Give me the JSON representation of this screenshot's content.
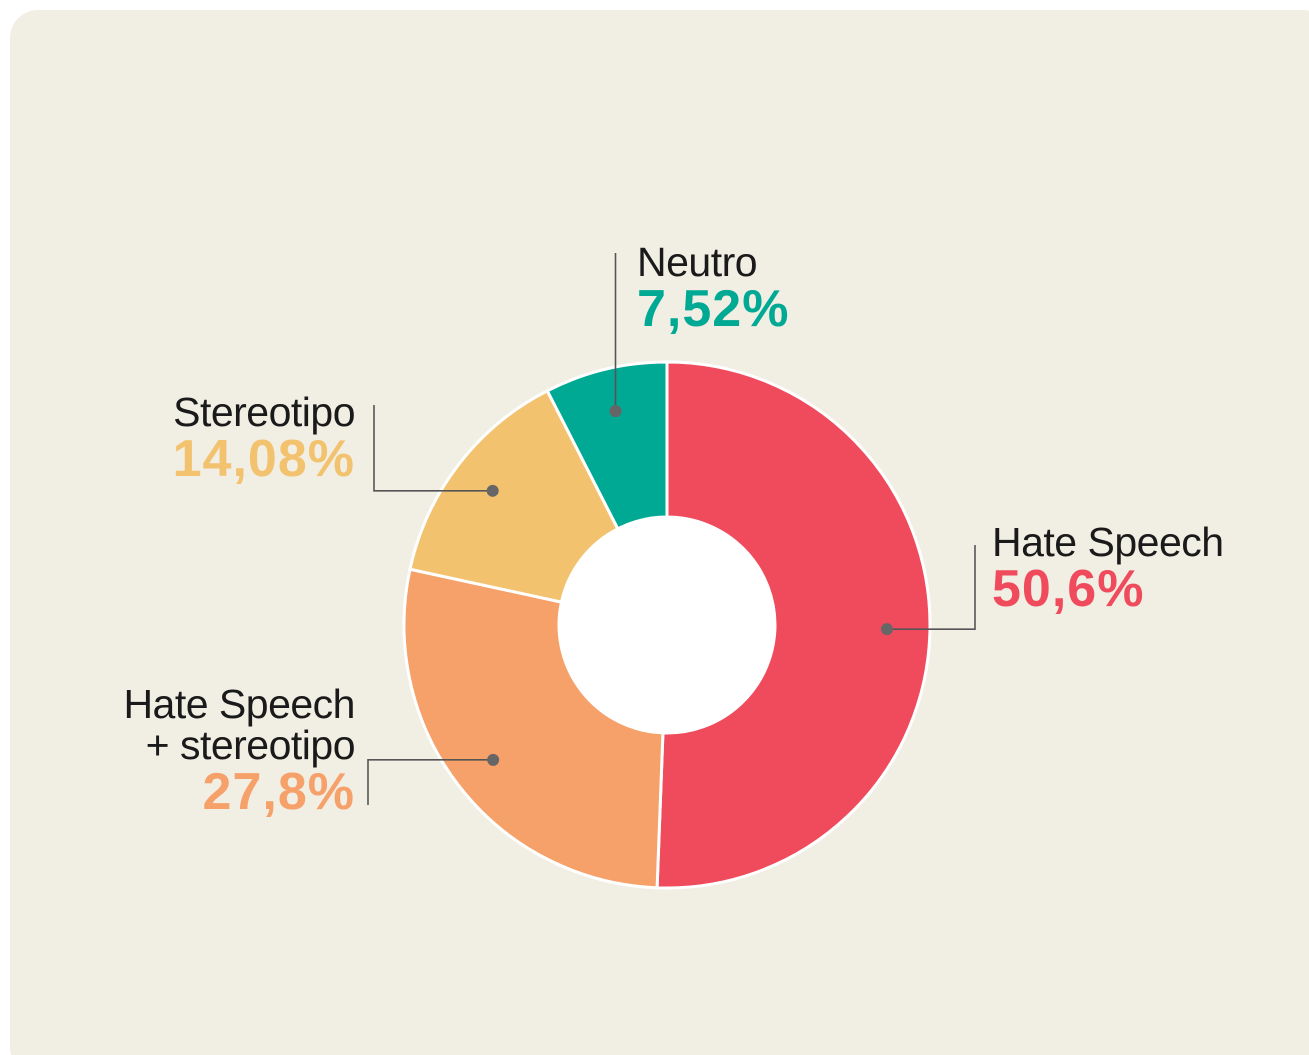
{
  "chart_data": {
    "type": "donut",
    "categories": [
      "Hate Speech",
      "Hate Speech + stereotipo",
      "Stereotipo",
      "Neutro"
    ],
    "values": [
      50.6,
      27.8,
      14.08,
      7.52
    ],
    "value_labels": [
      "50,6%",
      "27,8%",
      "14,08%",
      "7,52%"
    ],
    "colors": [
      "#ef4b5c",
      "#f6a06a",
      "#f3c26f",
      "#00a994"
    ]
  }
}
